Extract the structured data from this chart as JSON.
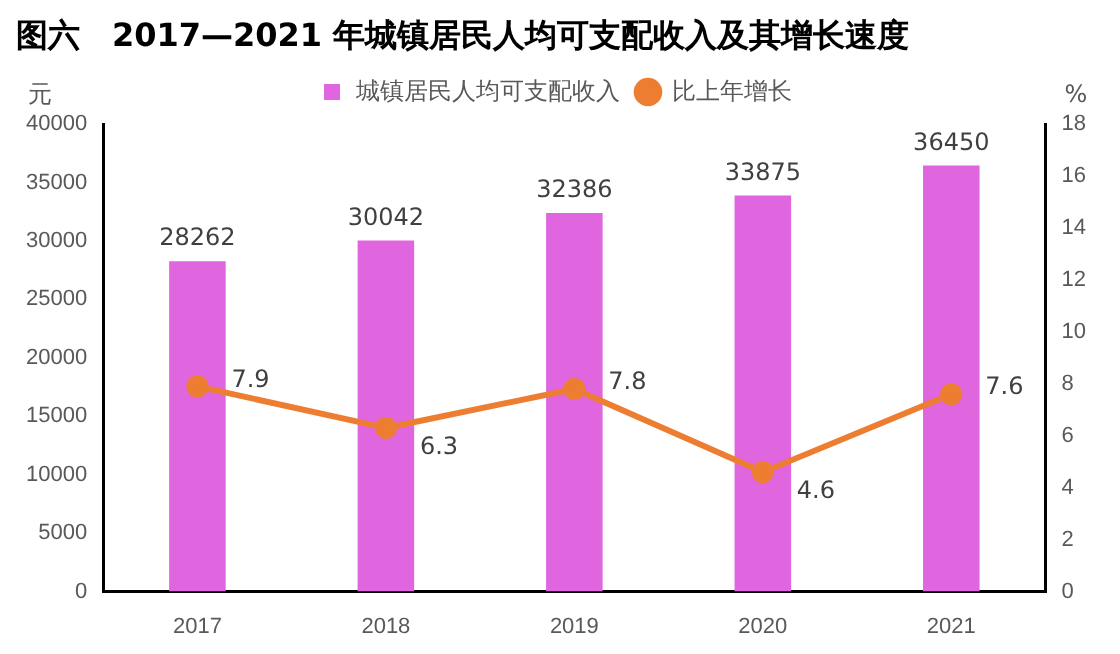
{
  "chart_data": {
    "type": "bar",
    "title": "图六　2017—2021 年城镇居民人均可支配收入及其增长速度",
    "categories": [
      "2017",
      "2018",
      "2019",
      "2020",
      "2021"
    ],
    "series": [
      {
        "name": "城镇居民人均可支配收入",
        "color": "#e066e0",
        "values": [
          28262,
          30042,
          32386,
          33875,
          36450
        ]
      },
      {
        "name": "比上年增长",
        "type": "line",
        "axis": "y2",
        "color": "#ed7d31",
        "values": [
          7.9,
          6.3,
          7.8,
          4.6,
          7.6
        ]
      }
    ],
    "ylabel": "元",
    "y2label": "%",
    "ylim": [
      0,
      40000
    ],
    "yticks": [
      0,
      5000,
      10000,
      15000,
      20000,
      25000,
      30000,
      35000,
      40000
    ],
    "y2lim": [
      0,
      18
    ],
    "y2ticks": [
      0,
      2,
      4,
      6,
      8,
      10,
      12,
      14,
      16,
      18
    ],
    "grid": false,
    "legend": "top",
    "marker": "circle",
    "data_labels": true
  }
}
